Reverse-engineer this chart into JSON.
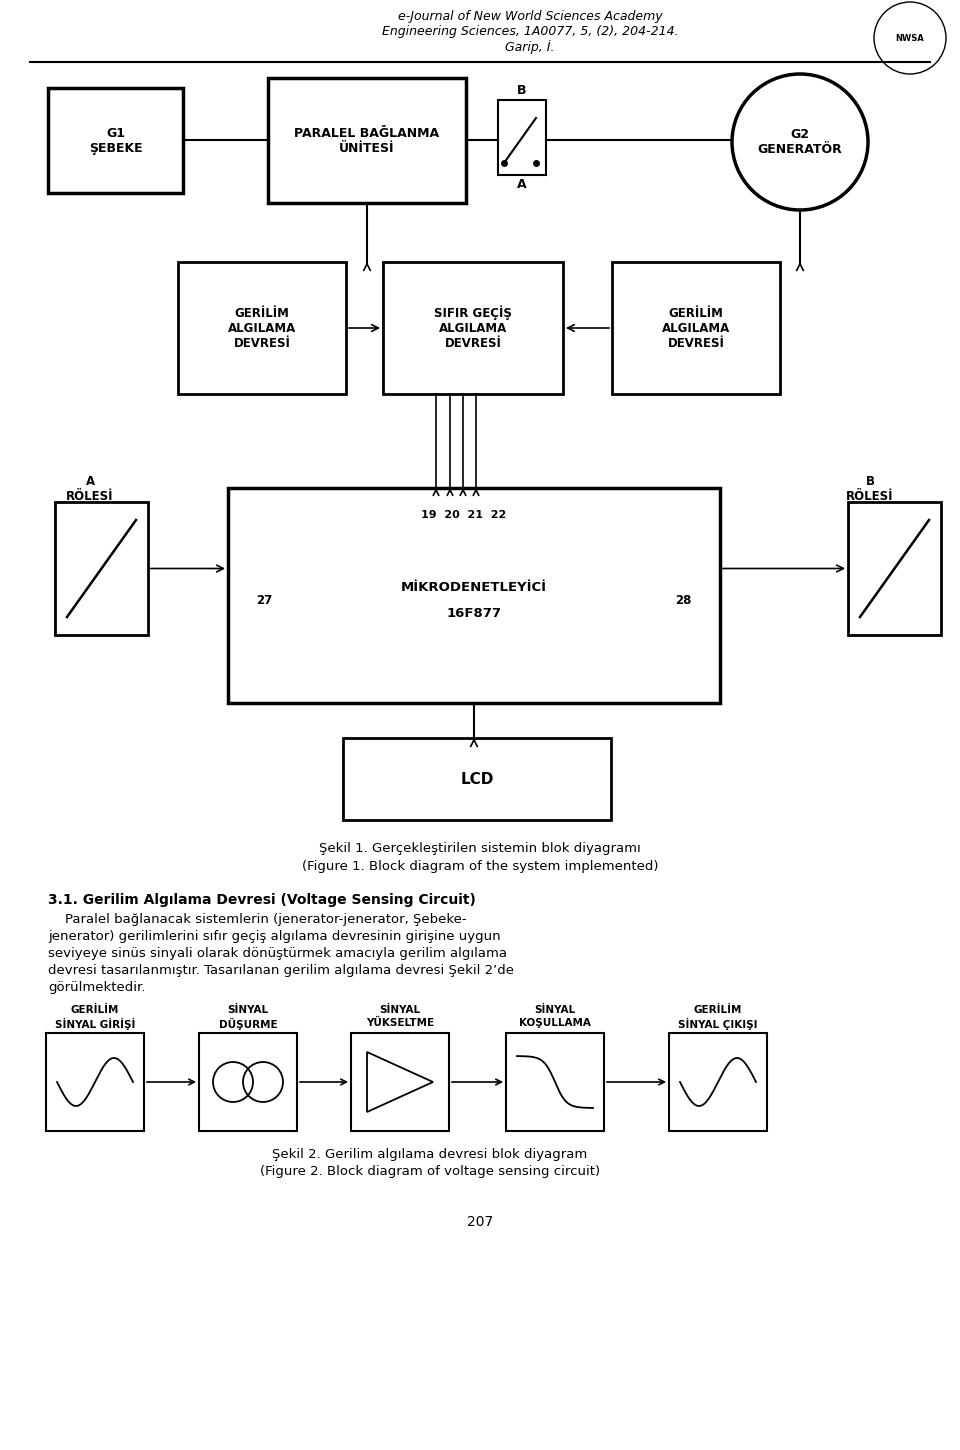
{
  "bg_color": "#ffffff",
  "header_line1": "e-Journal of New World Sciences Academy",
  "header_line2": "Engineering Sciences, 1A0077, 5, (2), 204-214.",
  "header_line3": "Garip, İ.",
  "fig_caption1": "Şekil 1. Gerçekleştirilen sistemin blok diyagramı",
  "fig_caption2": "(Figure 1. Block diagram of the system implemented)",
  "section_title": "3.1. Gerilim Algılama Devresi (Voltage Sensing Circuit)",
  "fig2_caption1": "Şekil 2. Gerilim algılama devresi blok diyagram",
  "fig2_caption2": "(Figure 2. Block diagram of voltage sensing circuit)",
  "page_num": "207",
  "body_lines": [
    "    Paralel bağlanacak sistemlerin (jenerator-jenerator, Şebeke-",
    "jenerator) gerilimlerini sıfır geçiş algılama devresinin girişine uygun",
    "seviyeye sinüs sinyali olarak dönüştürmek amacıyla gerilim algılama",
    "devresi tasarılanmıştır. Tasarılanan gerilim algılama devresi Şekil 2’de",
    "görülmektedir."
  ],
  "fig2_labels_top": [
    "GERİLİM",
    "SİNYAL",
    "SİNYAL",
    "SİNYAL",
    "GERİLİM"
  ],
  "fig2_labels_bot": [
    "SİNYAL GİRİŞİ",
    "DÜŞURME",
    "YÜKSELTME",
    "KOŞULLAMA",
    "SİNYAL ÇIKIŞI"
  ]
}
